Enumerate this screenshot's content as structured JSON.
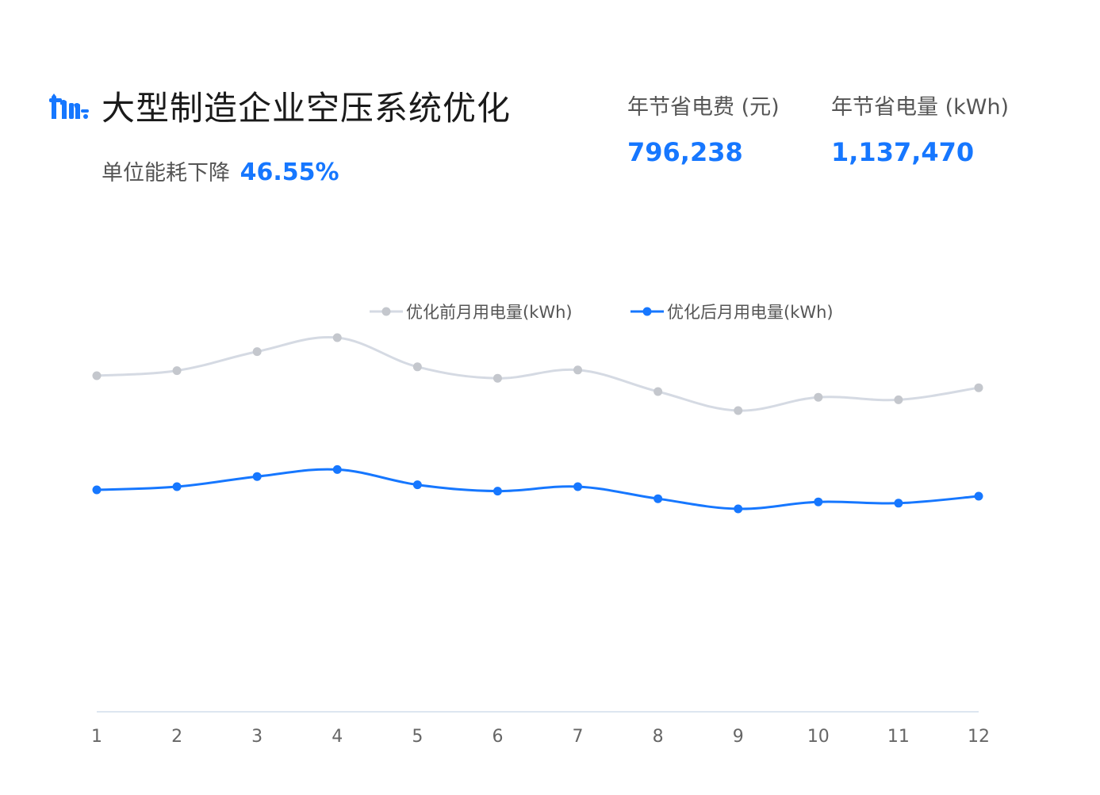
{
  "header": {
    "title": "大型制造企业空压系统优化",
    "subtitle_label": "单位能耗下降",
    "subtitle_value": "46.55%"
  },
  "stats": [
    {
      "label": "年节省电费 (元)",
      "value": "796,238"
    },
    {
      "label": "年节省电量 (kWh)",
      "value": "1,137,470"
    }
  ],
  "icons": {
    "logo": "compressor-logo-icon"
  },
  "colors": {
    "accent": "#1677ff",
    "before_series": "#d5dae3",
    "before_marker": "#c4c7cd",
    "after_series": "#1677ff",
    "axis_line": "#dde6f0"
  },
  "chart_data": {
    "type": "line",
    "smooth": true,
    "categories": [
      "1",
      "2",
      "3",
      "4",
      "5",
      "6",
      "7",
      "8",
      "9",
      "10",
      "11",
      "12"
    ],
    "series": [
      {
        "name": "优化前月用电量(kWh)",
        "values": [
          530,
          538,
          568,
          590,
          544,
          526,
          539,
          505,
          475,
          496,
          492,
          511
        ]
      },
      {
        "name": "优化后月用电量(kWh)",
        "values": [
          350,
          355,
          371,
          382,
          358,
          348,
          355,
          336,
          320,
          331,
          329,
          340
        ]
      }
    ],
    "ylim": [
      0,
      1000
    ],
    "grid": false,
    "legend": "top-center",
    "y_axis_visible": false
  }
}
